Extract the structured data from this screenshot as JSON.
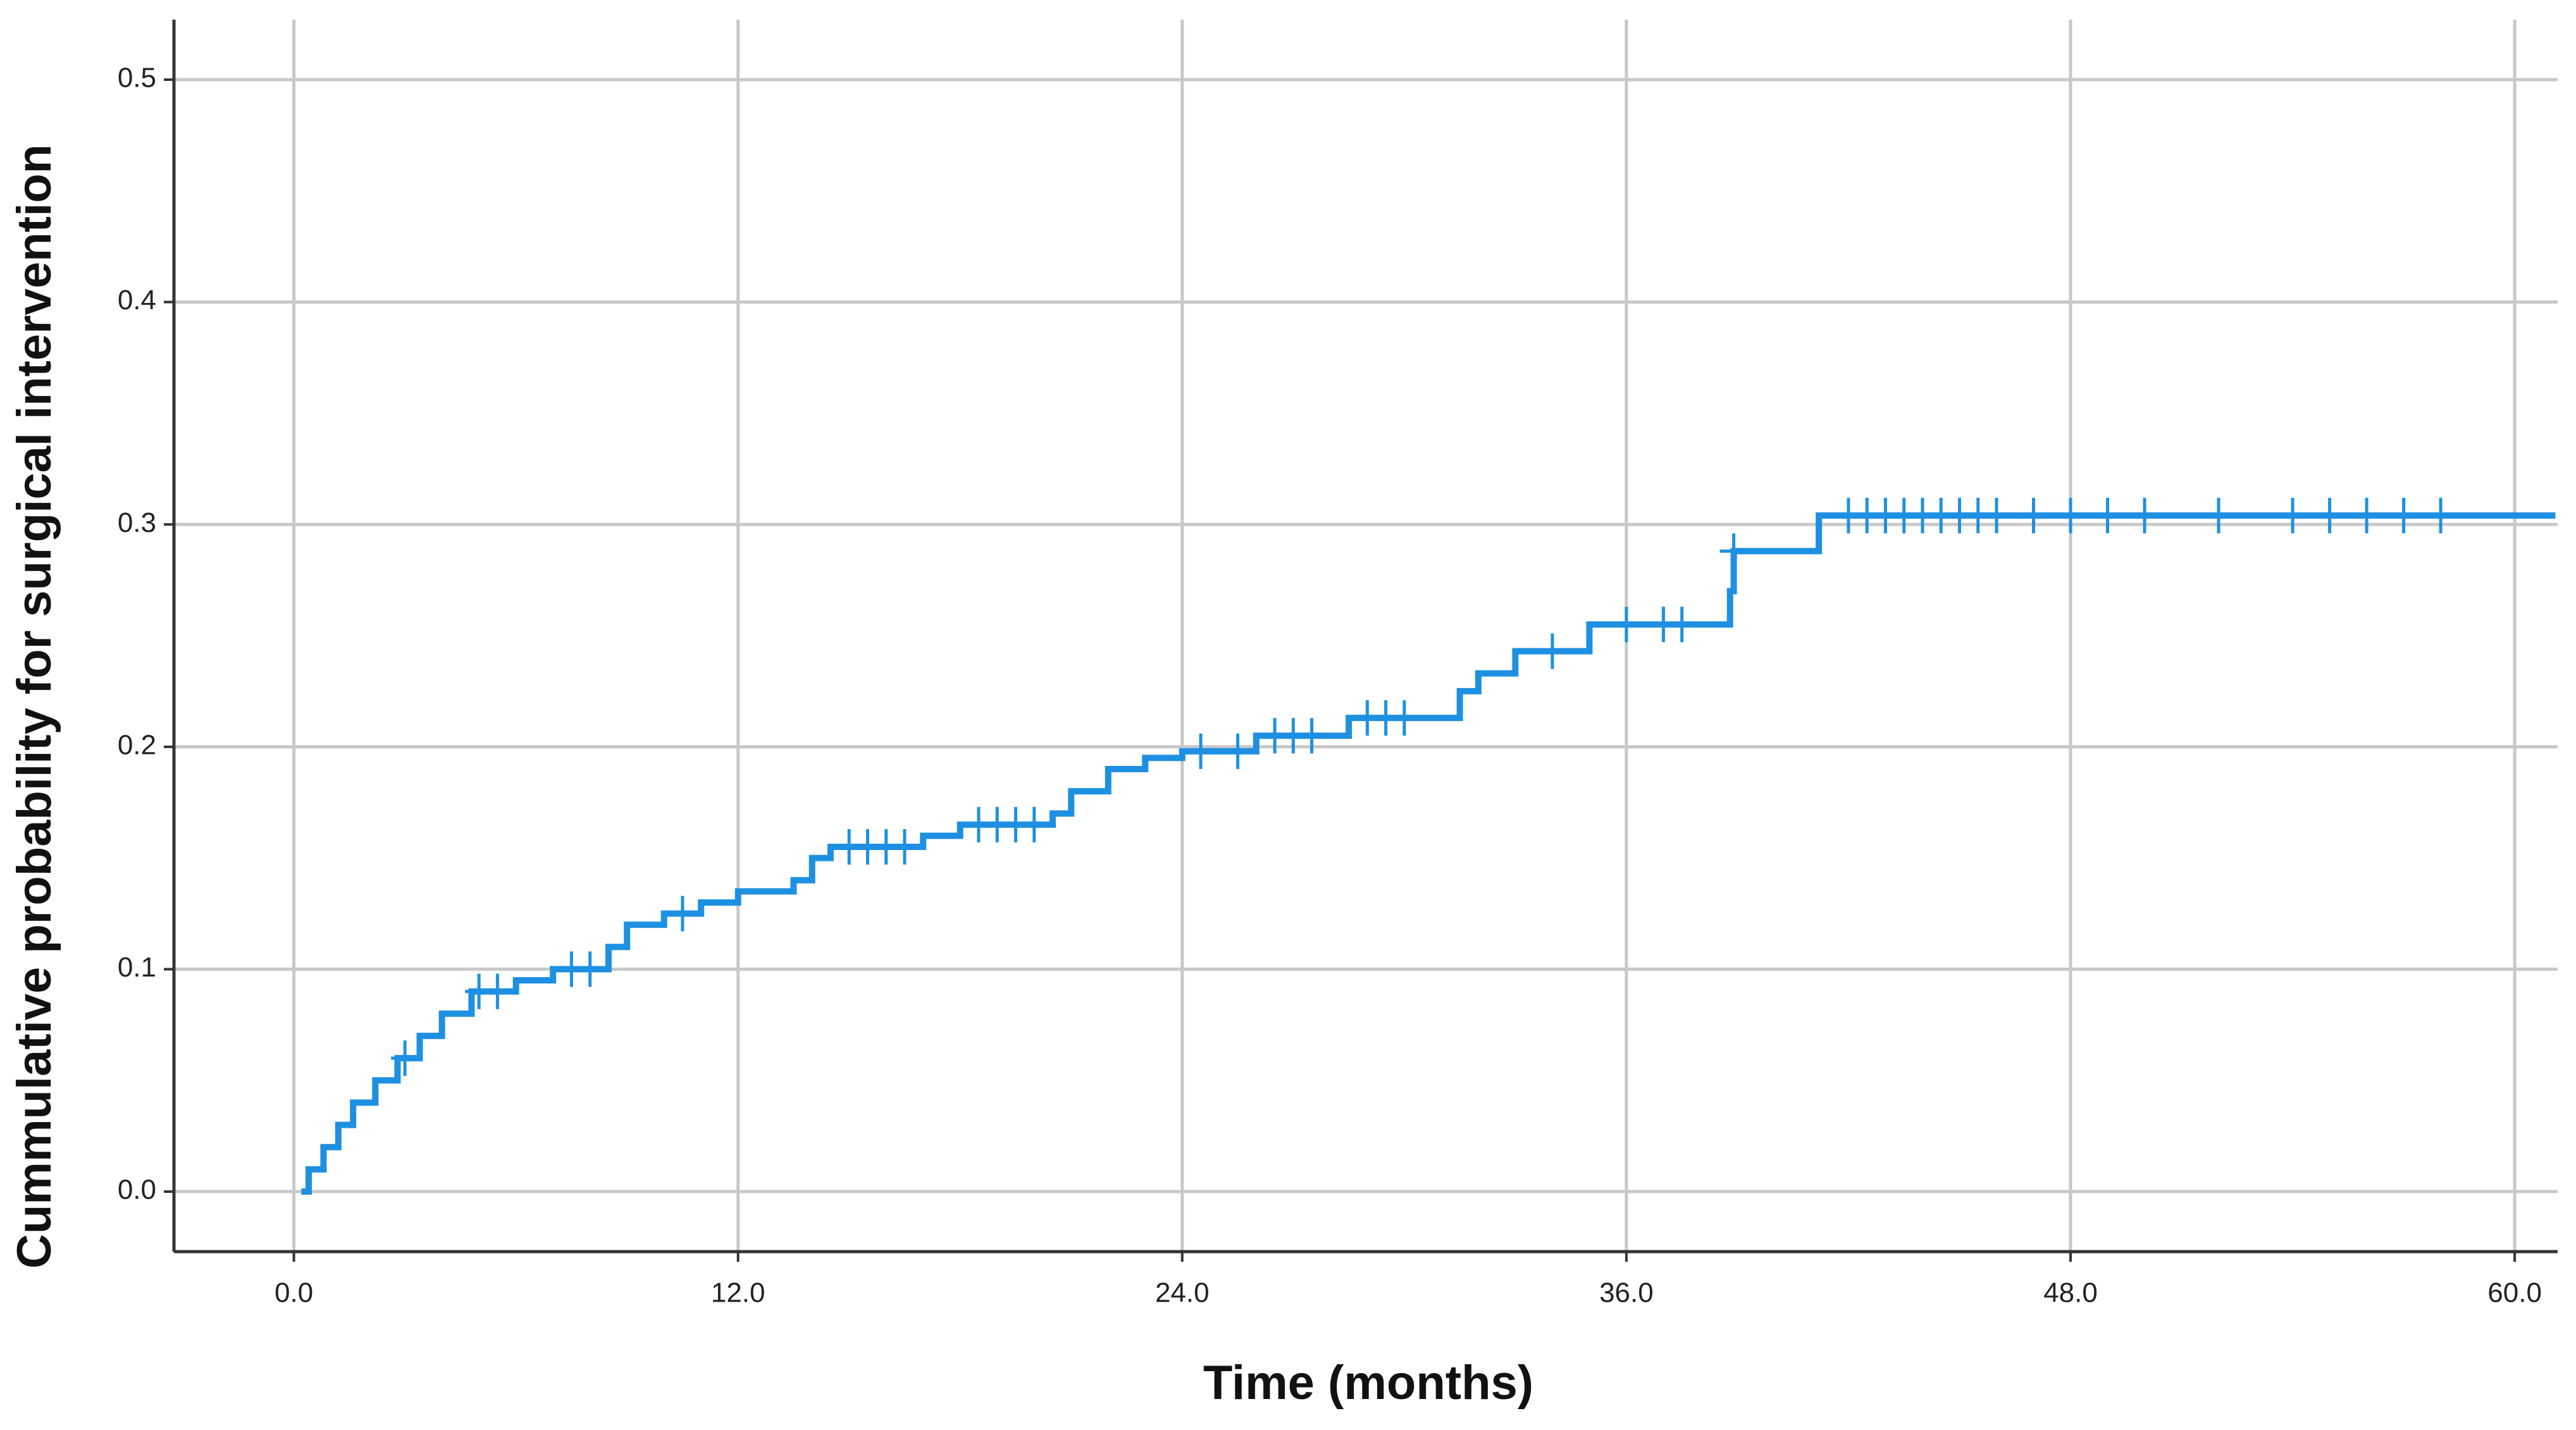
{
  "chart_data": {
    "type": "step",
    "x_label": "Time (months)",
    "y_label": "Cummulative probability for surgical intervention",
    "color": "#1e90e2",
    "grid": true,
    "xlim": [
      -3.24,
      61.16
    ],
    "ylim": [
      -0.027,
      0.527
    ],
    "xticks": [
      {
        "value": 0,
        "label": "0.0"
      },
      {
        "value": 12,
        "label": "12.0"
      },
      {
        "value": 24,
        "label": "24.0"
      },
      {
        "value": 36,
        "label": "36.0"
      },
      {
        "value": 48,
        "label": "48.0"
      },
      {
        "value": 60,
        "label": "60.0"
      }
    ],
    "yticks": [
      {
        "value": 0,
        "label": "0.0"
      },
      {
        "value": 0.1,
        "label": "0.1"
      },
      {
        "value": 0.2,
        "label": "0.2"
      },
      {
        "value": 0.3,
        "label": "0.3"
      },
      {
        "value": 0.4,
        "label": "0.4"
      },
      {
        "value": 0.5,
        "label": "0.5"
      }
    ],
    "x": [
      0.2,
      0.4,
      0.8,
      1.2,
      1.6,
      2.2,
      2.8,
      3.4,
      4.0,
      4.8,
      6.0,
      7.0,
      8.5,
      9.0,
      10.0,
      11.0,
      12.0,
      13.5,
      14.0,
      14.5,
      17.0,
      18.0,
      20.5,
      21.0,
      22.0,
      23.0,
      24.0,
      26.0,
      28.5,
      31.5,
      32.0,
      33.0,
      35.0,
      38.8,
      38.9,
      41.2,
      61.1
    ],
    "y": [
      0,
      0.01,
      0.02,
      0.03,
      0.04,
      0.05,
      0.06,
      0.07,
      0.08,
      0.09,
      0.095,
      0.1,
      0.11,
      0.12,
      0.125,
      0.13,
      0.135,
      0.14,
      0.15,
      0.155,
      0.16,
      0.165,
      0.17,
      0.18,
      0.19,
      0.195,
      0.198,
      0.205,
      0.213,
      0.225,
      0.233,
      0.243,
      0.255,
      0.27,
      0.288,
      0.304,
      0.304
    ],
    "censored_x": [
      3.0,
      5.0,
      5.5,
      7.5,
      8.0,
      10.5,
      15.0,
      15.5,
      16.0,
      16.5,
      18.5,
      19.0,
      19.5,
      20.0,
      24.5,
      25.5,
      26.5,
      27.0,
      27.5,
      29.0,
      29.5,
      30.0,
      34.0,
      36.0,
      37.0,
      37.5,
      38.9,
      42.0,
      42.5,
      43.0,
      43.5,
      44.0,
      44.5,
      45.0,
      45.5,
      46.0,
      47.0,
      48.0,
      49.0,
      50.0,
      52.0,
      54.0,
      55.0,
      56.0,
      57.0,
      58.0
    ],
    "censored_y": [
      0.06,
      0.09,
      0.09,
      0.1,
      0.1,
      0.125,
      0.155,
      0.155,
      0.155,
      0.155,
      0.165,
      0.165,
      0.165,
      0.165,
      0.198,
      0.198,
      0.205,
      0.205,
      0.205,
      0.213,
      0.213,
      0.213,
      0.243,
      0.255,
      0.255,
      0.255,
      0.288,
      0.304,
      0.304,
      0.304,
      0.304,
      0.304,
      0.304,
      0.304,
      0.304,
      0.304,
      0.304,
      0.304,
      0.304,
      0.304,
      0.304,
      0.304,
      0.304,
      0.304,
      0.304,
      0.304
    ]
  }
}
